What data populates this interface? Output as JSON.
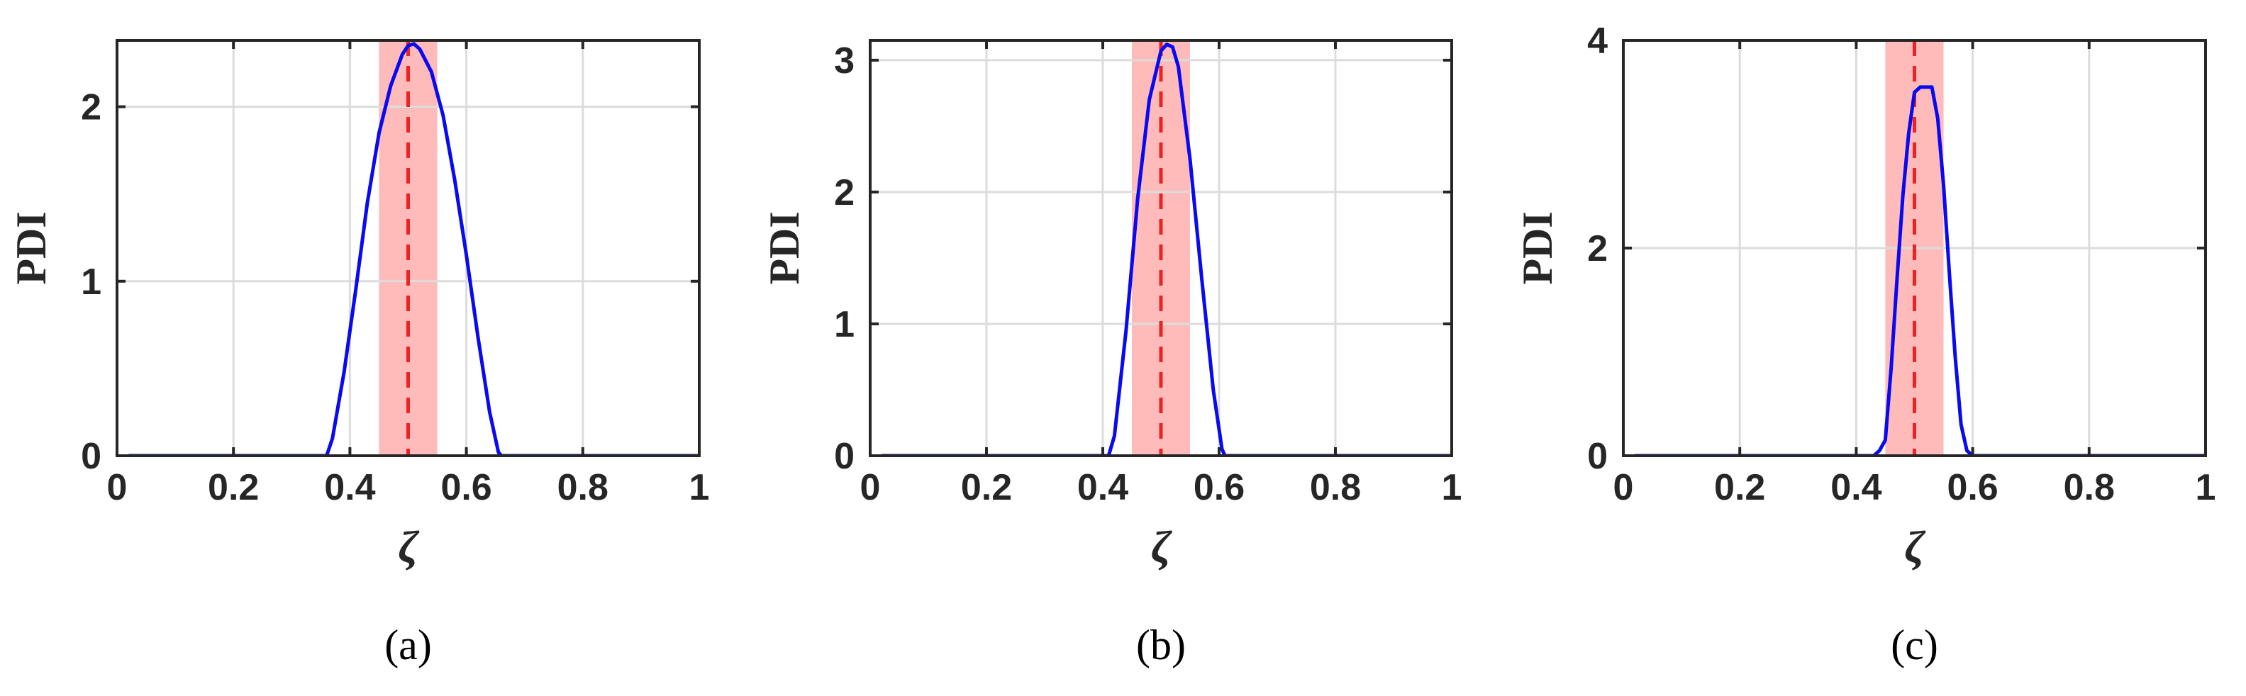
{
  "colors": {
    "curve": "#0a0af0",
    "band": "#ffb3b3",
    "marker": "#ee2222",
    "grid": "#dcdcdc",
    "axis": "#262626"
  },
  "chart_data": [
    {
      "type": "line",
      "panel_label": "(a)",
      "xlabel": "ζ",
      "ylabel": "PDI",
      "xlim": [
        0,
        1
      ],
      "ylim": [
        0,
        2.38
      ],
      "xticks": [
        0,
        0.2,
        0.4,
        0.6,
        0.8,
        1
      ],
      "xtick_labels": [
        "0",
        "0.2",
        "0.4",
        "0.6",
        "0.8",
        "1"
      ],
      "yticks": [
        0,
        1,
        2
      ],
      "ytick_labels": [
        "0",
        "1",
        "2"
      ],
      "grid": true,
      "band": [
        0.45,
        0.55
      ],
      "marker_x": 0.5,
      "series": [
        {
          "x": [
            0.02,
            0.1,
            0.2,
            0.3,
            0.36,
            0.37,
            0.39,
            0.41,
            0.43,
            0.45,
            0.47,
            0.49,
            0.5,
            0.51,
            0.52,
            0.54,
            0.56,
            0.58,
            0.6,
            0.62,
            0.64,
            0.655,
            0.66,
            0.7,
            0.8,
            0.9,
            1.0
          ],
          "y": [
            0,
            0,
            0,
            0,
            0,
            0.1,
            0.48,
            0.95,
            1.45,
            1.85,
            2.12,
            2.3,
            2.35,
            2.36,
            2.33,
            2.2,
            1.95,
            1.58,
            1.15,
            0.68,
            0.25,
            0.02,
            0,
            0,
            0,
            0,
            0
          ]
        }
      ]
    },
    {
      "type": "line",
      "panel_label": "(b)",
      "xlabel": "ζ",
      "ylabel": "PDI",
      "xlim": [
        0,
        1
      ],
      "ylim": [
        0,
        3.15
      ],
      "xticks": [
        0,
        0.2,
        0.4,
        0.6,
        0.8,
        1
      ],
      "xtick_labels": [
        "0",
        "0.2",
        "0.4",
        "0.6",
        "0.8",
        "1"
      ],
      "yticks": [
        0,
        1,
        2,
        3
      ],
      "ytick_labels": [
        "0",
        "1",
        "2",
        "3"
      ],
      "grid": true,
      "band": [
        0.45,
        0.55
      ],
      "marker_x": 0.5,
      "series": [
        {
          "x": [
            0.02,
            0.1,
            0.2,
            0.3,
            0.35,
            0.41,
            0.42,
            0.44,
            0.46,
            0.48,
            0.5,
            0.51,
            0.52,
            0.53,
            0.55,
            0.57,
            0.59,
            0.605,
            0.61,
            0.7,
            0.8,
            0.9,
            1.0
          ],
          "y": [
            0,
            0,
            0,
            0,
            0,
            0,
            0.15,
            0.95,
            1.95,
            2.7,
            3.07,
            3.12,
            3.1,
            2.95,
            2.25,
            1.35,
            0.5,
            0.05,
            0,
            0,
            0,
            0,
            0
          ]
        }
      ]
    },
    {
      "type": "line",
      "panel_label": "(c)",
      "xlabel": "ζ",
      "ylabel": "PDI",
      "xlim": [
        0,
        1
      ],
      "ylim": [
        0,
        4
      ],
      "xticks": [
        0,
        0.2,
        0.4,
        0.6,
        0.8,
        1
      ],
      "xtick_labels": [
        "0",
        "0.2",
        "0.4",
        "0.6",
        "0.8",
        "1"
      ],
      "yticks": [
        0,
        2,
        4
      ],
      "ytick_labels": [
        "0",
        "2",
        "4"
      ],
      "grid": true,
      "band": [
        0.45,
        0.55
      ],
      "marker_x": 0.5,
      "series": [
        {
          "x": [
            0.02,
            0.1,
            0.2,
            0.3,
            0.4,
            0.43,
            0.44,
            0.45,
            0.46,
            0.47,
            0.48,
            0.49,
            0.5,
            0.51,
            0.52,
            0.53,
            0.54,
            0.55,
            0.56,
            0.57,
            0.58,
            0.59,
            0.6,
            0.7,
            0.8,
            0.9,
            1.0
          ],
          "y": [
            0,
            0,
            0,
            0,
            0,
            0,
            0.05,
            0.15,
            0.85,
            1.7,
            2.5,
            3.1,
            3.5,
            3.55,
            3.55,
            3.55,
            3.25,
            2.6,
            1.75,
            0.95,
            0.3,
            0.05,
            0,
            0,
            0,
            0,
            0
          ]
        }
      ]
    }
  ]
}
